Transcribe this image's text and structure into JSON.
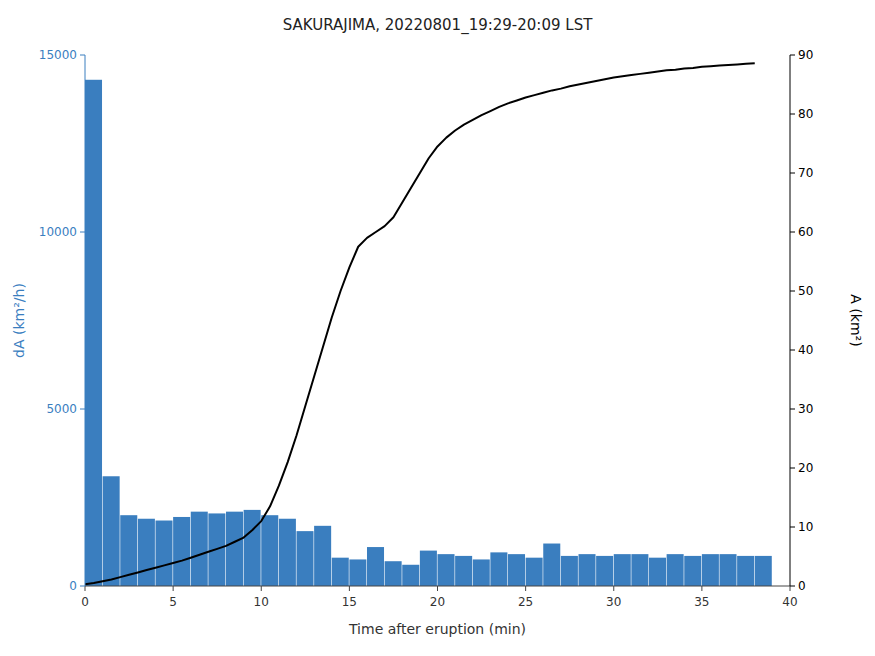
{
  "chart_data": {
    "type": "bar",
    "title": "SAKURAJIMA, 20220801_19:29-20:09 LST",
    "x_label": "Time after eruption (min)",
    "y_label": "dA (km²/h)",
    "y2_label": "A (km²)",
    "xlim": [
      0,
      40
    ],
    "xticks": [
      0,
      5,
      10,
      15,
      20,
      25,
      30,
      35,
      40
    ],
    "ylim": [
      0,
      15000
    ],
    "yticks": [
      0,
      5000,
      10000,
      15000
    ],
    "y2lim": [
      0,
      90
    ],
    "y2ticks": [
      0,
      10,
      20,
      30,
      40,
      50,
      60,
      70,
      80,
      90
    ],
    "series": [
      {
        "type": "bar",
        "color": "#3a7ebf",
        "x": [
          0,
          1,
          2,
          3,
          4,
          5,
          6,
          7,
          8,
          9,
          10,
          11,
          12,
          13,
          14,
          15,
          16,
          17,
          18,
          19,
          20,
          21,
          22,
          23,
          24,
          25,
          26,
          27,
          28,
          29,
          30,
          31,
          32,
          33,
          34,
          35,
          36,
          37,
          38
        ],
        "values": [
          14300,
          3100,
          2000,
          1900,
          1850,
          1950,
          2100,
          2050,
          2100,
          2150,
          2000,
          1900,
          1550,
          1700,
          800,
          750,
          1100,
          700,
          600,
          1000,
          900,
          850,
          750,
          950,
          900,
          800,
          1200,
          850,
          900,
          850,
          900,
          900,
          800,
          900,
          850,
          900,
          900,
          850,
          850
        ]
      },
      {
        "type": "line",
        "color": "#000000",
        "axis": "y2",
        "x": [
          0,
          0.5,
          1,
          1.5,
          2,
          2.5,
          3,
          3.5,
          4,
          4.5,
          5,
          5.5,
          6,
          6.5,
          7,
          7.5,
          8,
          8.5,
          9,
          9.5,
          10,
          10.5,
          11,
          11.5,
          12,
          12.5,
          13,
          13.5,
          14,
          14.5,
          15,
          15.5,
          16,
          16.5,
          17,
          17.5,
          18,
          18.5,
          19,
          19.5,
          20,
          20.5,
          21,
          21.5,
          22,
          22.5,
          23,
          23.5,
          24,
          24.5,
          25,
          25.5,
          26,
          26.5,
          27,
          27.5,
          28,
          28.5,
          29,
          29.5,
          30,
          30.5,
          31,
          31.5,
          32,
          32.5,
          33,
          33.5,
          34,
          34.5,
          35,
          35.5,
          36,
          36.5,
          37,
          37.5,
          38
        ],
        "values": [
          0.3,
          0.5,
          0.8,
          1.1,
          1.5,
          1.9,
          2.3,
          2.7,
          3.1,
          3.5,
          3.9,
          4.3,
          4.8,
          5.3,
          5.8,
          6.3,
          6.8,
          7.5,
          8.2,
          9.5,
          11.0,
          13.5,
          17.0,
          21.0,
          25.5,
          30.5,
          35.5,
          40.5,
          45.5,
          50.0,
          54.0,
          57.5,
          59.0,
          60.0,
          61.0,
          62.5,
          65.0,
          67.5,
          70.0,
          72.5,
          74.5,
          76.0,
          77.2,
          78.2,
          79.0,
          79.8,
          80.5,
          81.2,
          81.8,
          82.3,
          82.8,
          83.2,
          83.6,
          84.0,
          84.3,
          84.7,
          85.0,
          85.3,
          85.6,
          85.9,
          86.2,
          86.4,
          86.6,
          86.8,
          87.0,
          87.2,
          87.4,
          87.5,
          87.7,
          87.8,
          88.0,
          88.1,
          88.2,
          88.3,
          88.4,
          88.5,
          88.6
        ]
      }
    ]
  }
}
